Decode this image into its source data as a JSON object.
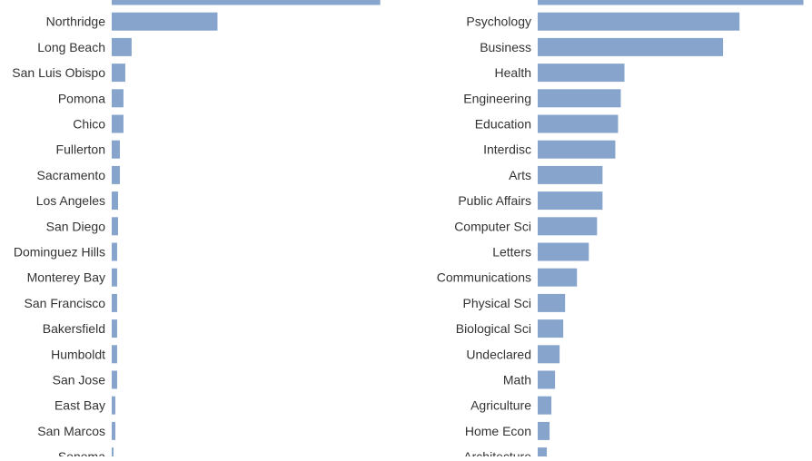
{
  "chart_data": [
    {
      "type": "bar",
      "orientation": "horizontal",
      "categories": [
        "",
        "Northridge",
        "Long Beach",
        "San Luis Obispo",
        "Pomona",
        "Chico",
        "Fullerton",
        "Sacramento",
        "Los Angeles",
        "San Diego",
        "Dominguez Hills",
        "Monterey Bay",
        "San Francisco",
        "Bakersfield",
        "Humboldt",
        "San Jose",
        "East Bay",
        "San Marcos",
        "Sonoma"
      ],
      "values": [
        297,
        117,
        22,
        15,
        13,
        13,
        9,
        9,
        7,
        7,
        6,
        6,
        6,
        6,
        6,
        6,
        4,
        4,
        2
      ],
      "xlim": [
        0,
        300
      ],
      "grid": false,
      "bar_color": "#87a5cc"
    },
    {
      "type": "bar",
      "orientation": "horizontal",
      "categories": [
        "",
        "Psychology",
        "Business",
        "Health",
        "Engineering",
        "Education",
        "Interdisc",
        "Arts",
        "Public Affairs",
        "Computer Sci",
        "Letters",
        "Communications",
        "Physical Sci",
        "Biological Sci",
        "Undeclared",
        "Math",
        "Agriculture",
        "Home Econ",
        "Architecture"
      ],
      "values": [
        291,
        221,
        203,
        95,
        91,
        88,
        85,
        71,
        71,
        65,
        56,
        43,
        30,
        28,
        24,
        19,
        15,
        13,
        10
      ],
      "xlim": [
        0,
        300
      ],
      "grid": false,
      "bar_color": "#87a5cc"
    }
  ]
}
